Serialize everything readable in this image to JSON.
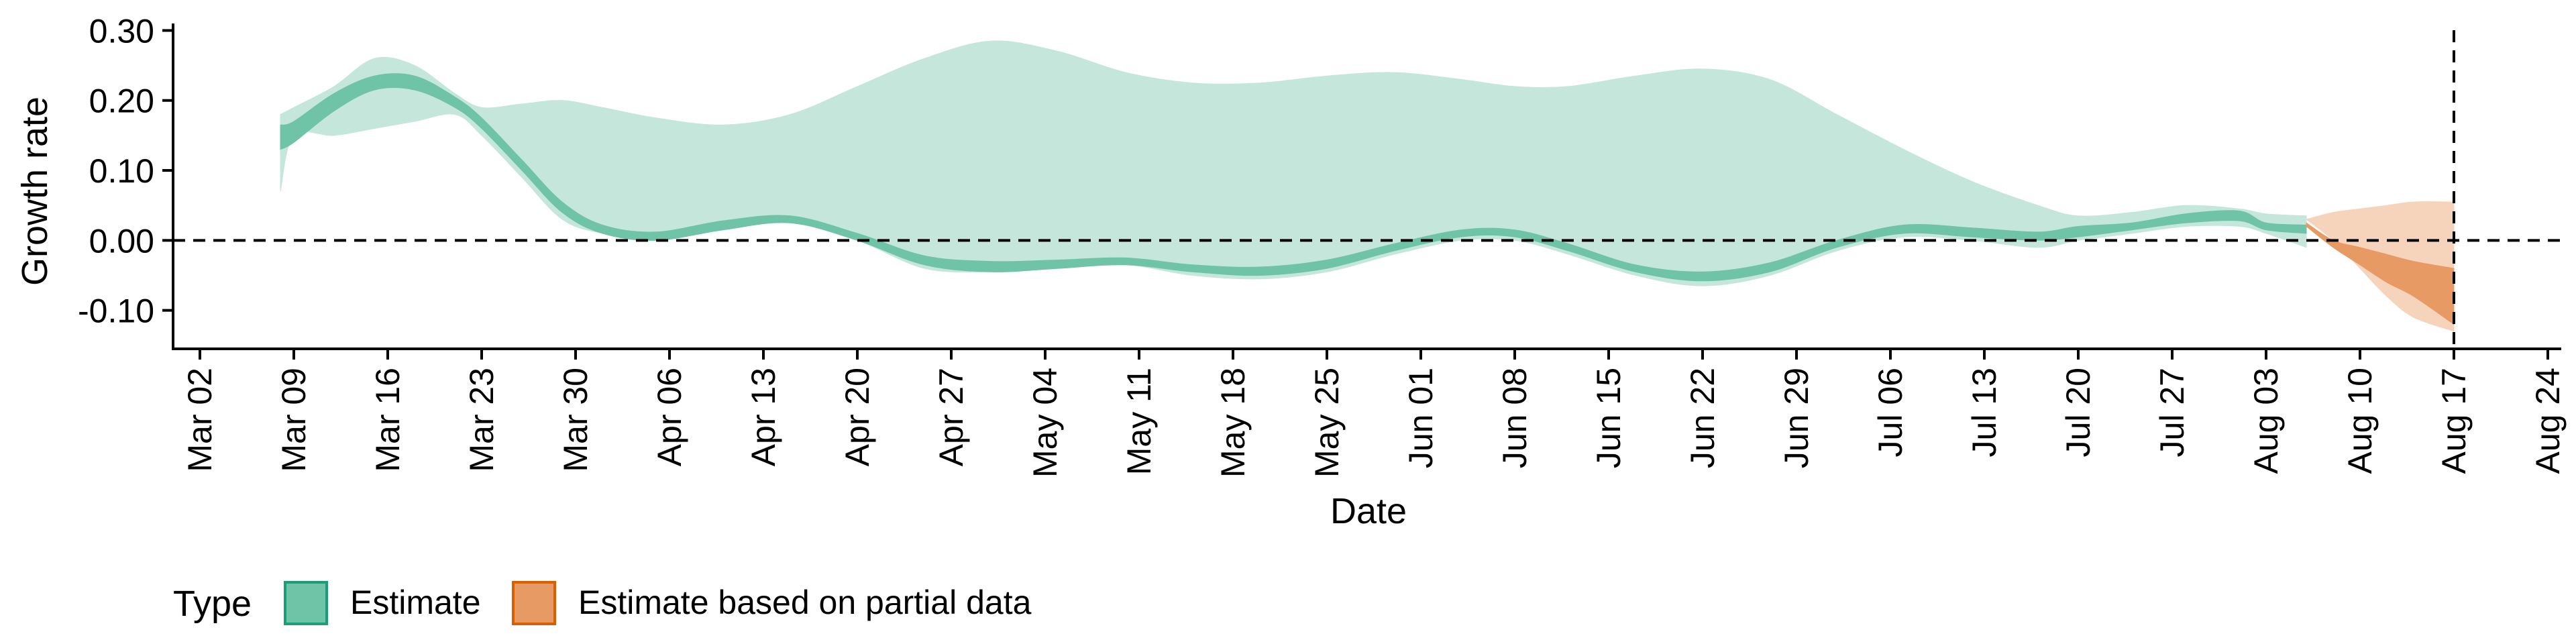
{
  "chart_data": {
    "type": "area",
    "xlabel": "Date",
    "ylabel": "Growth rate",
    "ylim": [
      -0.155,
      0.31
    ],
    "xlim": [
      "2020-02-29",
      "2020-08-25"
    ],
    "x_ticks": [
      "2020-03-02",
      "2020-03-09",
      "2020-03-16",
      "2020-03-23",
      "2020-03-30",
      "2020-04-06",
      "2020-04-13",
      "2020-04-20",
      "2020-04-27",
      "2020-05-04",
      "2020-05-11",
      "2020-05-18",
      "2020-05-25",
      "2020-06-01",
      "2020-06-08",
      "2020-06-15",
      "2020-06-22",
      "2020-06-29",
      "2020-07-06",
      "2020-07-13",
      "2020-07-20",
      "2020-07-27",
      "2020-08-03",
      "2020-08-10",
      "2020-08-17",
      "2020-08-24"
    ],
    "x_tick_labels": [
      "Mar 02",
      "Mar 09",
      "Mar 16",
      "Mar 23",
      "Mar 30",
      "Apr 06",
      "Apr 13",
      "Apr 20",
      "Apr 27",
      "May 04",
      "May 11",
      "May 18",
      "May 25",
      "Jun 01",
      "Jun 08",
      "Jun 15",
      "Jun 22",
      "Jun 29",
      "Jul 06",
      "Jul 13",
      "Jul 20",
      "Jul 27",
      "Aug 03",
      "Aug 10",
      "Aug 17",
      "Aug 24"
    ],
    "y_ticks": [
      0.3,
      0.2,
      0.1,
      0.0,
      -0.1
    ],
    "y_tick_labels": [
      "0.30",
      "0.20",
      "0.10",
      "0.00",
      "-0.10"
    ],
    "reference_lines": {
      "horizontal_y": 0.0,
      "vertical_x": "2020-08-17"
    },
    "legend": {
      "title": "Type",
      "placement": "bottom-left",
      "entries": [
        "Estimate",
        "Estimate based on partial data"
      ]
    },
    "colors": {
      "estimate_outer": "#c4e6db",
      "estimate_inner": "#6fc3a7",
      "estimate_legend_border": "#1b9e77",
      "partial_outer": "#f6d3bb",
      "partial_inner": "#e89a64",
      "partial_legend_border": "#d95f02",
      "axis": "#000000"
    },
    "series": [
      {
        "name": "Estimate",
        "x": [
          "2020-03-08",
          "2020-03-09",
          "2020-03-12",
          "2020-03-15",
          "2020-03-18",
          "2020-03-21",
          "2020-03-23",
          "2020-03-26",
          "2020-03-29",
          "2020-04-01",
          "2020-04-05",
          "2020-04-10",
          "2020-04-15",
          "2020-04-20",
          "2020-04-25",
          "2020-04-30",
          "2020-05-05",
          "2020-05-10",
          "2020-05-15",
          "2020-05-20",
          "2020-05-25",
          "2020-05-30",
          "2020-06-04",
          "2020-06-08",
          "2020-06-12",
          "2020-06-17",
          "2020-06-22",
          "2020-06-27",
          "2020-07-02",
          "2020-07-07",
          "2020-07-12",
          "2020-07-17",
          "2020-07-20",
          "2020-07-24",
          "2020-07-28",
          "2020-08-01",
          "2020-08-03",
          "2020-08-06"
        ],
        "lower_outer": [
          0.07,
          0.15,
          0.15,
          0.16,
          0.17,
          0.18,
          0.15,
          0.09,
          0.03,
          0.01,
          0.0,
          0.02,
          0.025,
          0.0,
          -0.04,
          -0.045,
          -0.04,
          -0.035,
          -0.05,
          -0.055,
          -0.045,
          -0.02,
          0.0,
          0.0,
          -0.02,
          -0.05,
          -0.065,
          -0.05,
          -0.015,
          0.005,
          0.0,
          -0.01,
          0.0,
          0.01,
          0.02,
          0.02,
          0.01,
          -0.01
        ],
        "lower_inner": [
          0.13,
          0.14,
          0.185,
          0.215,
          0.215,
          0.19,
          0.16,
          0.1,
          0.04,
          0.01,
          0.0,
          0.015,
          0.025,
          0.0,
          -0.035,
          -0.045,
          -0.04,
          -0.035,
          -0.045,
          -0.05,
          -0.04,
          -0.015,
          0.005,
          0.005,
          -0.015,
          -0.045,
          -0.058,
          -0.045,
          -0.01,
          0.01,
          0.005,
          0.0,
          0.005,
          0.015,
          0.025,
          0.028,
          0.015,
          0.01
        ],
        "upper_inner": [
          0.165,
          0.17,
          0.21,
          0.235,
          0.235,
          0.205,
          0.175,
          0.115,
          0.055,
          0.022,
          0.012,
          0.028,
          0.035,
          0.01,
          -0.022,
          -0.03,
          -0.028,
          -0.025,
          -0.035,
          -0.038,
          -0.028,
          -0.005,
          0.015,
          0.015,
          -0.005,
          -0.035,
          -0.045,
          -0.032,
          0.0,
          0.022,
          0.018,
          0.012,
          0.02,
          0.025,
          0.038,
          0.042,
          0.025,
          0.022
        ],
        "upper_outer": [
          0.18,
          0.19,
          0.22,
          0.26,
          0.25,
          0.21,
          0.19,
          0.195,
          0.2,
          0.19,
          0.175,
          0.165,
          0.18,
          0.22,
          0.26,
          0.285,
          0.27,
          0.24,
          0.225,
          0.225,
          0.235,
          0.24,
          0.23,
          0.22,
          0.22,
          0.235,
          0.245,
          0.23,
          0.18,
          0.13,
          0.085,
          0.05,
          0.035,
          0.04,
          0.05,
          0.045,
          0.038,
          0.035
        ]
      },
      {
        "name": "Estimate based on partial data",
        "x": [
          "2020-08-06",
          "2020-08-08",
          "2020-08-10",
          "2020-08-12",
          "2020-08-14",
          "2020-08-17"
        ],
        "lower_outer": [
          0.03,
          0.0,
          -0.04,
          -0.08,
          -0.11,
          -0.13
        ],
        "lower_inner": [
          0.02,
          -0.01,
          -0.035,
          -0.06,
          -0.08,
          -0.12
        ],
        "upper_inner": [
          0.025,
          0.0,
          -0.01,
          -0.02,
          -0.03,
          -0.04
        ],
        "upper_outer": [
          0.03,
          0.04,
          0.045,
          0.05,
          0.055,
          0.055
        ]
      }
    ]
  }
}
